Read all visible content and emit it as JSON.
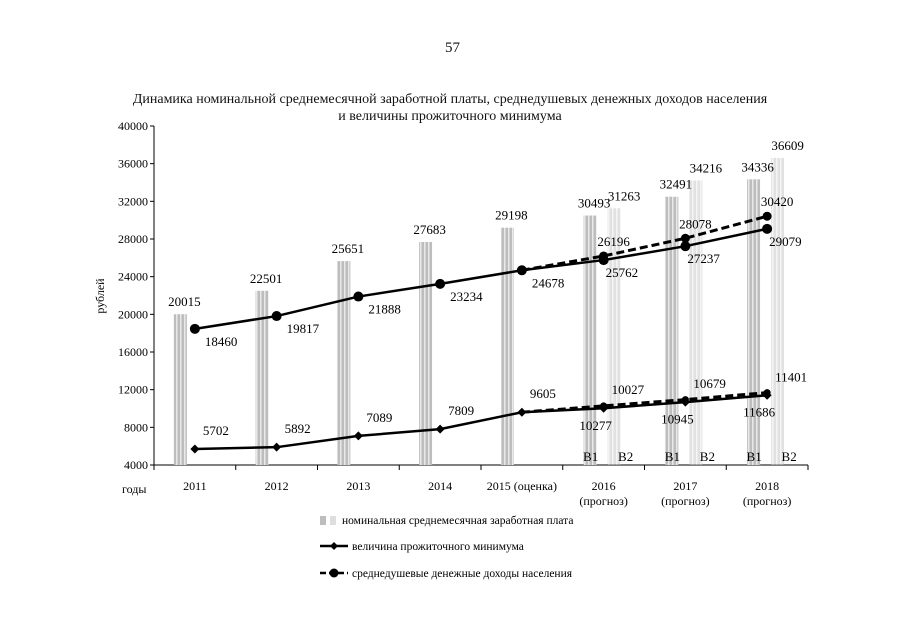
{
  "page_number": "57",
  "chart_data": {
    "type": "bar",
    "title": "Динамика номинальной среднемесячной заработной платы, среднедушевых денежных доходов населения и величины прожиточного минимума",
    "ylabel": "рублей",
    "xlabel": "годы",
    "ylim": [
      4000,
      40000
    ],
    "yticks": [
      "4000",
      "8000",
      "12000",
      "16000",
      "20000",
      "24000",
      "28000",
      "32000",
      "36000",
      "40000"
    ],
    "grid": false,
    "legend_position": "bottom",
    "categories": [
      {
        "label": "2011",
        "sub": ""
      },
      {
        "label": "2012",
        "sub": ""
      },
      {
        "label": "2013",
        "sub": ""
      },
      {
        "label": "2014",
        "sub": ""
      },
      {
        "label": "2015 (оценка)",
        "sub": ""
      },
      {
        "label": "2016",
        "sub": "(прогноз)"
      },
      {
        "label": "2017",
        "sub": "(прогноз)"
      },
      {
        "label": "2018",
        "sub": "(прогноз)"
      }
    ],
    "variant_labels": [
      "В1",
      "В2"
    ],
    "series": [
      {
        "name": "номинальная среднемесячная заработная плата",
        "kind": "bar",
        "color": "#b8b8b8",
        "points": [
          {
            "x": 0,
            "y": 20015,
            "label": "20015"
          },
          {
            "x": 1,
            "y": 22501,
            "label": "22501"
          },
          {
            "x": 2,
            "y": 25651,
            "label": "25651"
          },
          {
            "x": 3,
            "y": 27683,
            "label": "27683"
          },
          {
            "x": 4,
            "y": 29198,
            "label": "29198"
          },
          {
            "x": 5,
            "y": 30493,
            "label": "30493"
          },
          {
            "x": 6,
            "y": 32491,
            "label": "32491"
          },
          {
            "x": 7,
            "y": 34336,
            "label": "34336"
          }
        ]
      },
      {
        "name": "величина прожиточного минимума",
        "kind": "line",
        "color": "#000000",
        "points": [
          {
            "x": 0,
            "y": 5702,
            "label": "5702"
          },
          {
            "x": 1,
            "y": 5892,
            "label": "5892"
          },
          {
            "x": 2,
            "y": 7089,
            "label": "7089"
          },
          {
            "x": 3,
            "y": 7809,
            "label": "7809"
          },
          {
            "x": 4,
            "y": 9605,
            "label": "9605"
          },
          {
            "x": 5,
            "y": 10027,
            "label": "10027"
          },
          {
            "x": 6,
            "y": 10679,
            "label": "10679"
          },
          {
            "x": 7,
            "y": 11401,
            "label": "11401"
          }
        ]
      },
      {
        "name": "среднедушевые денежные доходы населения",
        "kind": "line",
        "color": "#000000",
        "points": [
          {
            "x": 0,
            "y": 18460,
            "label": "18460"
          },
          {
            "x": 1,
            "y": 19817,
            "label": "19817"
          },
          {
            "x": 2,
            "y": 21888,
            "label": "21888"
          },
          {
            "x": 3,
            "y": 23234,
            "label": "23234"
          },
          {
            "x": 4,
            "y": 24678,
            "label": "24678"
          },
          {
            "x": 5,
            "y": 25762,
            "label": "25762"
          },
          {
            "x": 6,
            "y": 27237,
            "label": "27237"
          },
          {
            "x": 7,
            "y": 29079,
            "label": "29079"
          }
        ]
      }
    ],
    "variant2": {
      "wage_bars": [
        {
          "x": 5,
          "y": 31263,
          "label": "31263"
        },
        {
          "x": 6,
          "y": 34216,
          "label": "34216"
        },
        {
          "x": 7,
          "y": 36609,
          "label": "36609"
        }
      ],
      "subsistence_line": [
        {
          "x": 4,
          "y": 9605
        },
        {
          "x": 5,
          "y": 10277,
          "label": "10277"
        },
        {
          "x": 6,
          "y": 10945,
          "label": "10945"
        },
        {
          "x": 7,
          "y": 11686,
          "label": "11686"
        }
      ],
      "income_line": [
        {
          "x": 4,
          "y": 24678
        },
        {
          "x": 5,
          "y": 26196,
          "label": "26196"
        },
        {
          "x": 6,
          "y": 28078,
          "label": "28078"
        },
        {
          "x": 7,
          "y": 30420,
          "label": "30420"
        }
      ]
    }
  }
}
